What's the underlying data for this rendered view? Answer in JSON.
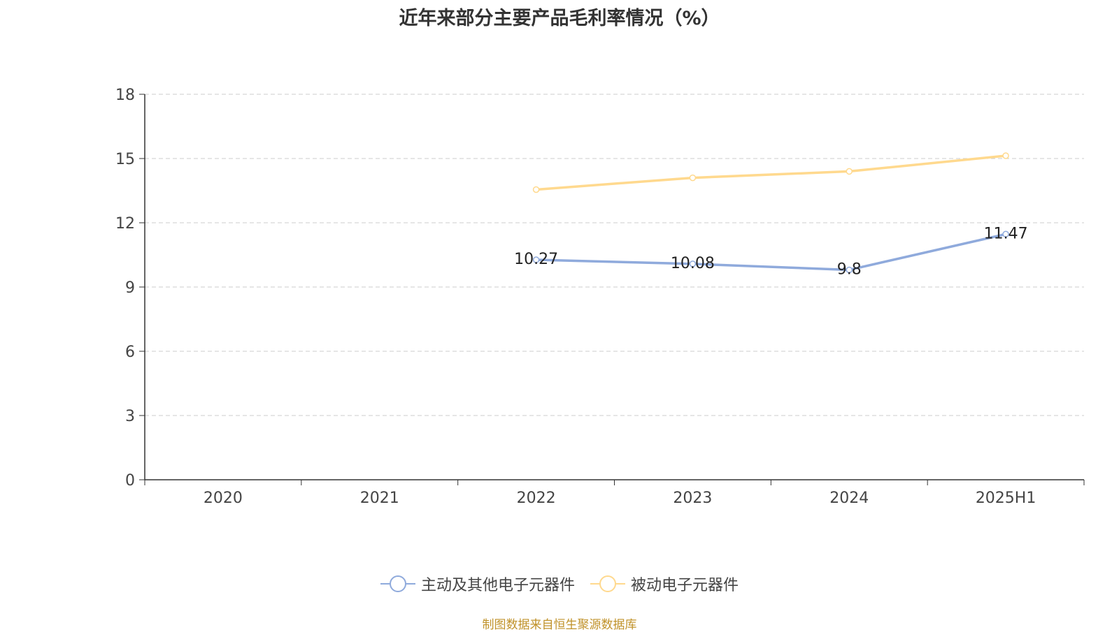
{
  "chart_data": {
    "type": "line",
    "title": "近年来部分主要产品毛利率情况（%）",
    "xlabel": "",
    "ylabel": "",
    "categories": [
      "2020",
      "2021",
      "2022",
      "2023",
      "2024",
      "2025H1"
    ],
    "ylim": [
      0,
      18
    ],
    "yticks": [
      0,
      3,
      6,
      9,
      12,
      15,
      18
    ],
    "grid": true,
    "legend_position": "bottom",
    "series": [
      {
        "name": "主动及其他电子元器件",
        "color": "#8faadc",
        "values": [
          null,
          null,
          10.27,
          10.08,
          9.8,
          11.47
        ],
        "labels": [
          "",
          "",
          "10.27",
          "10.08",
          "9.8",
          "11.47"
        ]
      },
      {
        "name": "被动电子元器件",
        "color": "#ffd98e",
        "values": [
          null,
          null,
          13.55,
          14.1,
          14.4,
          15.13
        ],
        "labels": [
          "",
          "",
          "",
          "",
          "",
          ""
        ]
      }
    ]
  },
  "footer": {
    "source": "制图数据来自恒生聚源数据库"
  }
}
